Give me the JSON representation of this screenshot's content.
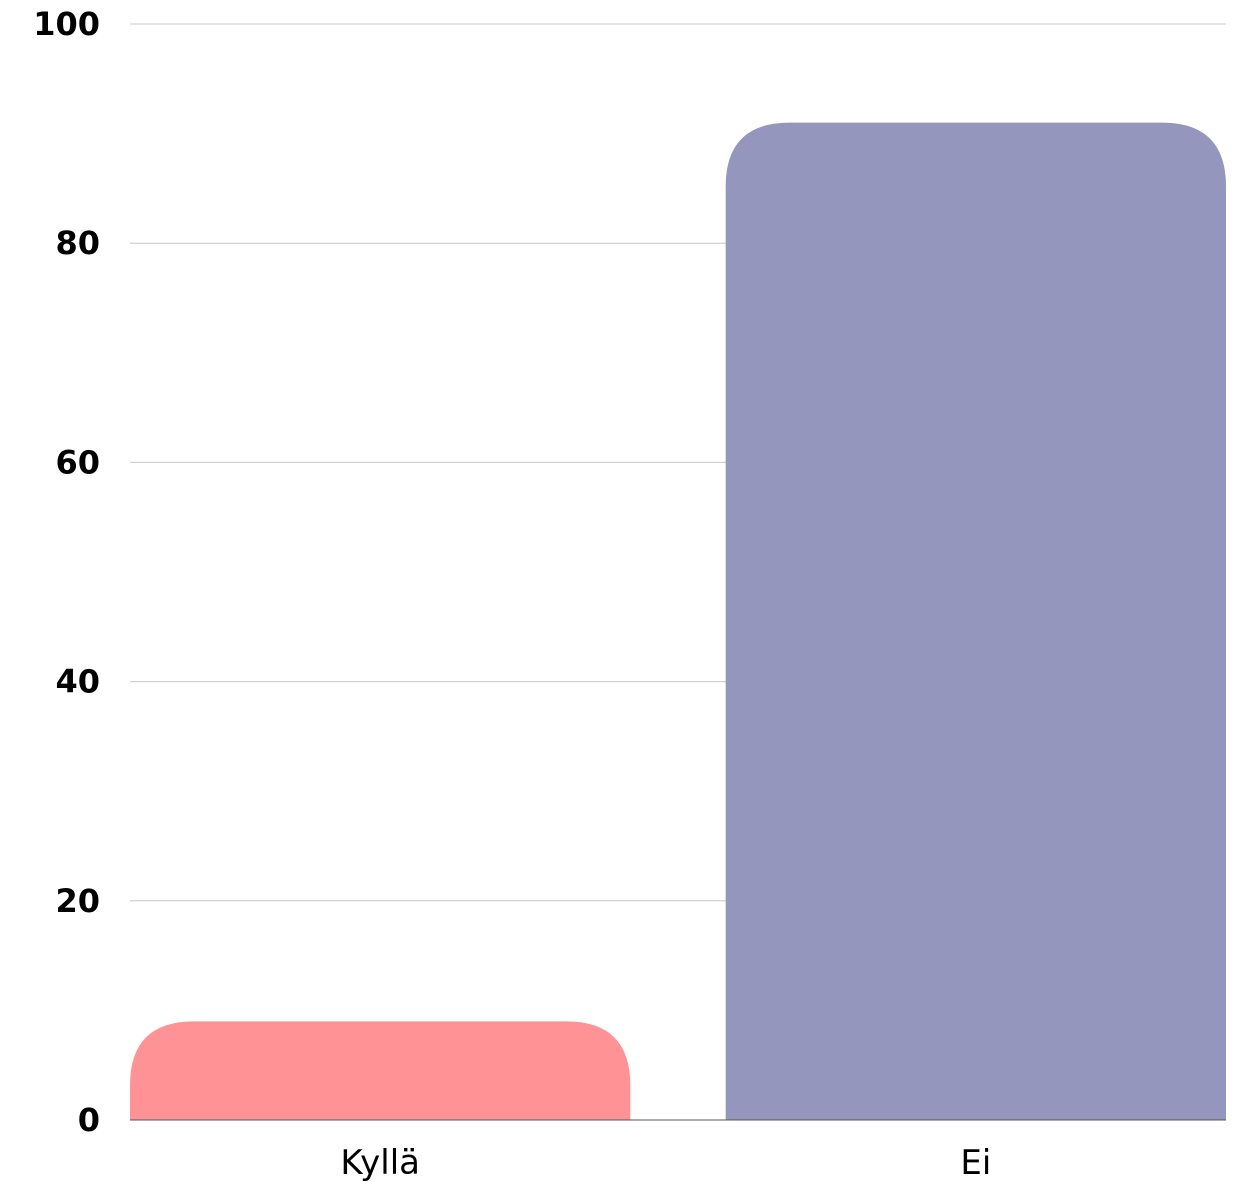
{
  "chart_data": {
    "type": "bar",
    "categories": [
      "Kyllä",
      "Ei"
    ],
    "values": [
      9,
      91
    ],
    "colors": [
      "#ff9294",
      "#9496bd"
    ],
    "ylim": [
      0,
      100
    ],
    "yticks": [
      0,
      20,
      40,
      60,
      80,
      100
    ],
    "grid": true,
    "legend": "none"
  }
}
